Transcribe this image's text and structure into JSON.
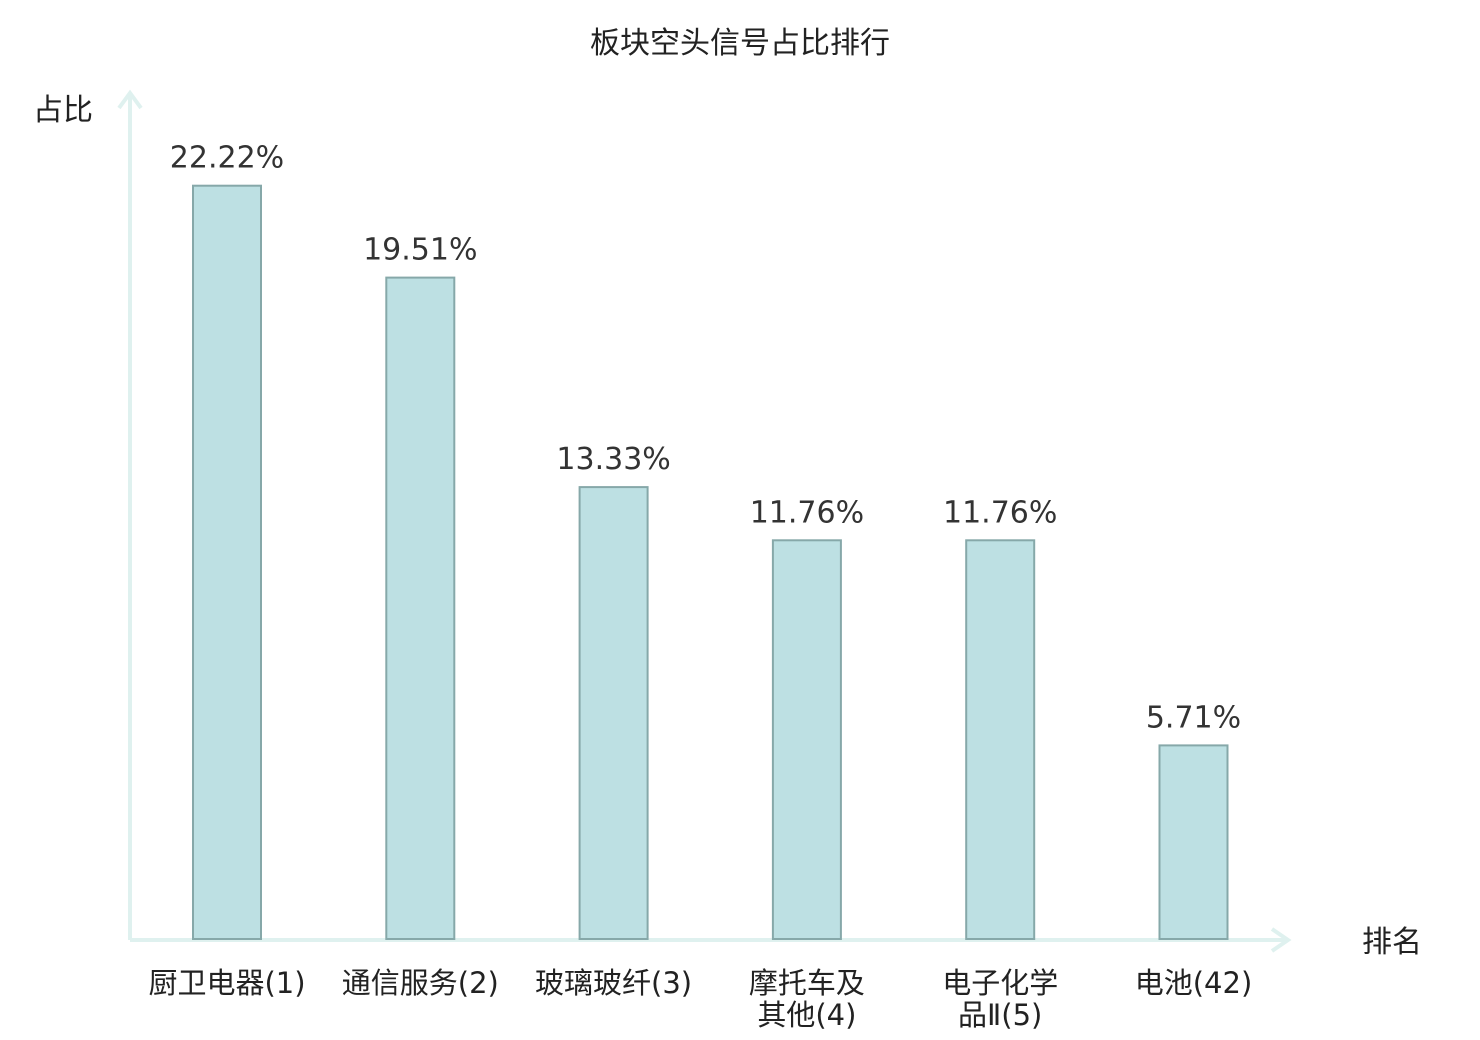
{
  "chart_data": {
    "type": "bar",
    "title": "板块空头信号占比排行",
    "ylabel": "占比",
    "xlabel": "排名",
    "categories": [
      [
        "厨卫电器(1)"
      ],
      [
        "通信服务(2)"
      ],
      [
        "玻璃玻纤(3)"
      ],
      [
        "摩托车及",
        "其他(4)"
      ],
      [
        "电子化学",
        "品Ⅱ(5)"
      ],
      [
        "电池(42)"
      ]
    ],
    "values": [
      22.22,
      19.51,
      13.33,
      11.76,
      11.76,
      5.71
    ],
    "value_labels": [
      "22.22%",
      "19.51%",
      "13.33%",
      "11.76%",
      "11.76%",
      "5.71%"
    ],
    "highlight_index": 5,
    "ylim": [
      0,
      25
    ],
    "grid": false,
    "colors": {
      "bar_fill": "#bde0e3",
      "bar_stroke": "#86a8a9",
      "axis": "#dff1ef",
      "highlight_text": "#e01010",
      "text": "#222222"
    }
  }
}
